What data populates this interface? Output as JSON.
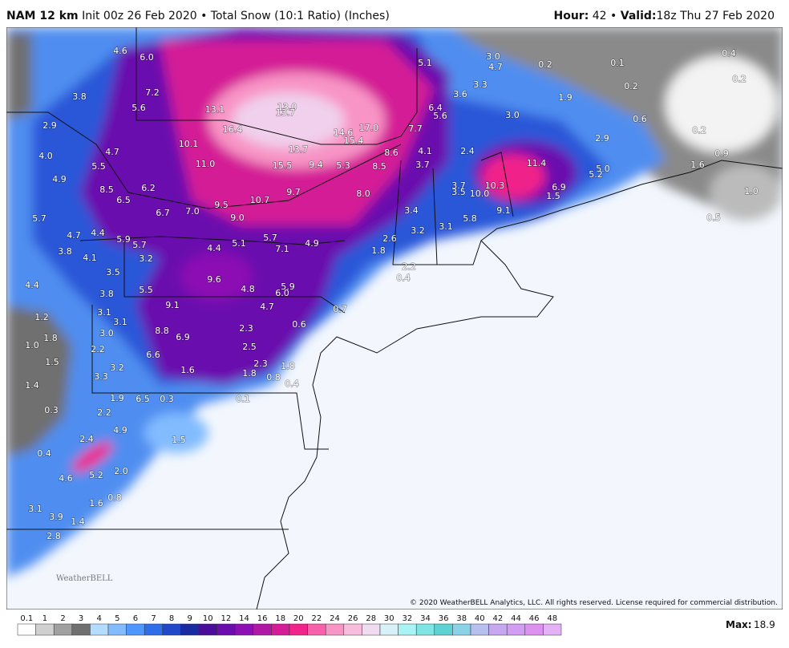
{
  "header": {
    "model": "NAM 12 km",
    "description": "Init 00z 26 Feb 2020 • Total Snow (10:1 Ratio) (Inches)",
    "hour_label": "Hour:",
    "hour": "42",
    "separator": "•",
    "valid_label": "Valid:",
    "valid": "18z Thu 27 Feb 2020"
  },
  "map": {
    "labels": [
      "4.6",
      "6.0",
      "3.8",
      "7.2",
      "5.6",
      "13.1",
      "13.0",
      "13.7",
      "16.4",
      "14.6",
      "17.0",
      "15.4",
      "7.7",
      "5.1",
      "3.0",
      "4.7",
      "0.2",
      "0.1",
      "0.4",
      "0.2",
      "0.2",
      "3.3",
      "3.6",
      "1.9",
      "6.4",
      "5.6",
      "3.0",
      "0.6",
      "0.2",
      "2.9",
      "0.9",
      "1.6",
      "2.9",
      "10.1",
      "13.7",
      "4.1",
      "2.4",
      "11.4",
      "5.0",
      "5.2",
      "4.0",
      "4.7",
      "5.5",
      "11.0",
      "15.5",
      "9.4",
      "5.3",
      "8.5",
      "3.7",
      "8.6",
      "4.9",
      "8.5",
      "6.2",
      "10.7",
      "9.7",
      "8.0",
      "3.7",
      "3.5",
      "10.0",
      "10.3",
      "6.9",
      "1.5",
      "1.0",
      "6.5",
      "5.7",
      "6.7",
      "7.0",
      "9.5",
      "9.0",
      "3.4",
      "9.1",
      "5.8",
      "0.5",
      "4.7",
      "4.4",
      "5.9",
      "5.7",
      "5.1",
      "5.7",
      "7.1",
      "4.9",
      "2.6",
      "3.2",
      "3.1",
      "3.8",
      "4.4",
      "4.1",
      "3.2",
      "1.8",
      "3.5",
      "2.2",
      "0.4",
      "9.6",
      "4.8",
      "4.4",
      "5.5",
      "5.9",
      "6.0",
      "3.8",
      "9.1",
      "4.7",
      "0.7",
      "3.1",
      "1.2",
      "3.1",
      "0.6",
      "8.8",
      "1.8",
      "3.0",
      "6.9",
      "2.3",
      "1.0",
      "2.2",
      "2.5",
      "6.6",
      "1.5",
      "3.2",
      "2.3",
      "1.8",
      "3.3",
      "1.6",
      "1.8",
      "0.8",
      "1.4",
      "0.4",
      "1.9",
      "6.5",
      "0.3",
      "0.1",
      "0.3",
      "2.2",
      "4.9",
      "2.4",
      "1.5",
      "0.4",
      "4.6",
      "5.2",
      "2.0",
      "0.8",
      "1.6",
      "3.1",
      "3.9",
      "1.4",
      "2.8"
    ],
    "logo": "WeatherBELL"
  },
  "legend": {
    "ticks": [
      "0.1",
      "1",
      "2",
      "3",
      "4",
      "5",
      "6",
      "7",
      "8",
      "9",
      "10",
      "12",
      "14",
      "16",
      "18",
      "20",
      "22",
      "24",
      "26",
      "28",
      "30",
      "32",
      "34",
      "36",
      "38",
      "40",
      "42",
      "44",
      "46",
      "48"
    ],
    "colors": [
      "#ffffff",
      "#d0d0d0",
      "#a0a0a0",
      "#707070",
      "#b4dcff",
      "#82bcff",
      "#4f96ff",
      "#2f6ee8",
      "#2148c8",
      "#1a2aa0",
      "#4a0c9a",
      "#6a0cae",
      "#8c10b4",
      "#b018a6",
      "#d41c96",
      "#f0248a",
      "#f860aa",
      "#f894c6",
      "#f8bcdc",
      "#f0dcf0",
      "#d8f0f8",
      "#a8f4f4",
      "#7ee4e4",
      "#5cd2d2",
      "#8ad2e8",
      "#b6bfee",
      "#c6a8f0",
      "#d29cf2",
      "#dc90f0",
      "#e4b0f6"
    ],
    "max_label": "Max:",
    "max": "18.9"
  },
  "footer": {
    "copyright": "© 2020 WeatherBELL Analytics, LLC. All rights reserved. License required for commercial distribution."
  }
}
